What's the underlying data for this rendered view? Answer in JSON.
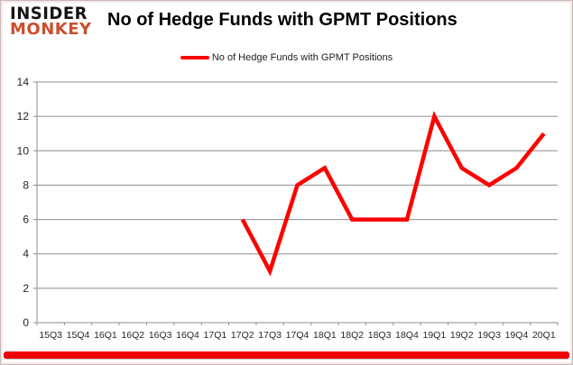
{
  "header": {
    "logo_line1": "INSIDER",
    "logo_line2": "MONKEY",
    "title": "No of Hedge Funds with GPMT Positions"
  },
  "legend": {
    "label": "No of Hedge Funds with GPMT Positions"
  },
  "colors": {
    "series": "#fe0000",
    "gridline": "#8e8e8e",
    "axis_text": "#262626",
    "logo_accent": "#c94f2c",
    "bottom_bar": "#ee0202"
  },
  "chart_data": {
    "type": "line",
    "title": "No of Hedge Funds with GPMT Positions",
    "categories": [
      "15Q3",
      "15Q4",
      "16Q1",
      "16Q2",
      "16Q3",
      "16Q4",
      "17Q1",
      "17Q2",
      "17Q3",
      "17Q4",
      "18Q1",
      "18Q2",
      "18Q3",
      "18Q4",
      "19Q1",
      "19Q2",
      "19Q3",
      "19Q4",
      "20Q1"
    ],
    "series": [
      {
        "name": "No of Hedge Funds with GPMT Positions",
        "values": [
          null,
          null,
          null,
          null,
          null,
          null,
          null,
          6,
          3,
          8,
          9,
          6,
          6,
          6,
          12,
          9,
          8,
          9,
          11
        ]
      }
    ],
    "ylim": [
      0,
      14
    ],
    "yticks": [
      0,
      2,
      4,
      6,
      8,
      10,
      12,
      14
    ],
    "grid": true,
    "legend_position": "top"
  }
}
